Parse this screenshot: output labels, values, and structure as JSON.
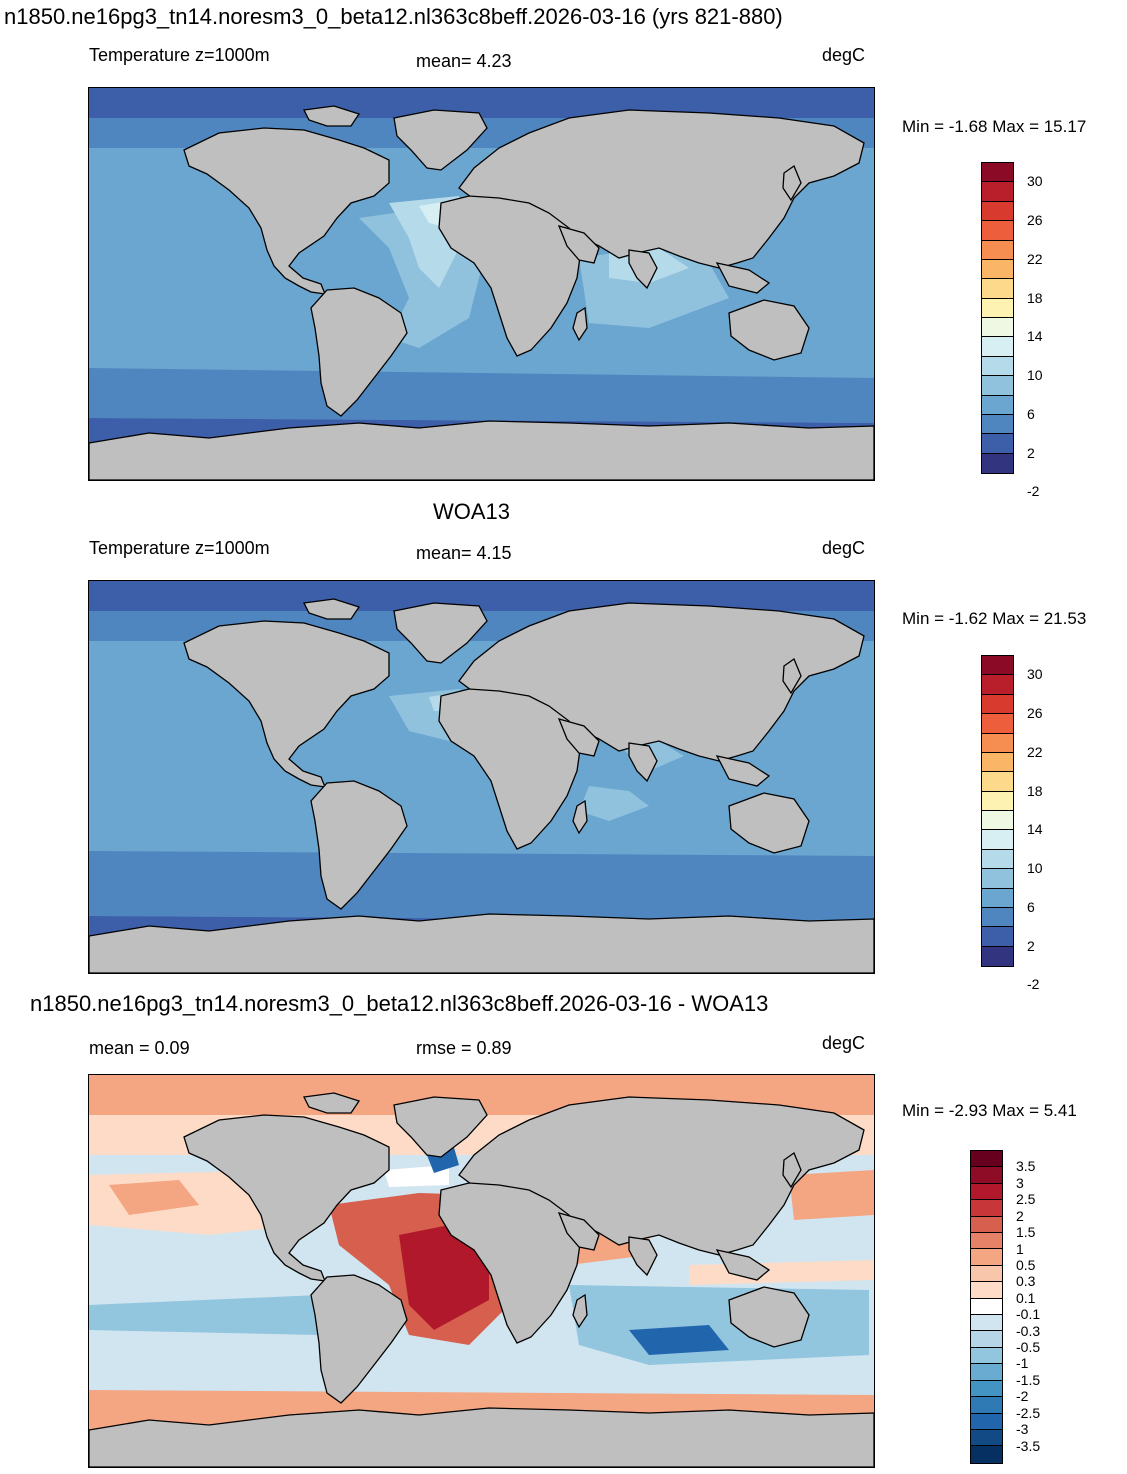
{
  "title_top": "n1850.ne16pg3_tn14.noresm3_0_beta12.nl363c8beff.2026-03-16 (yrs 821-880)",
  "panels": [
    {
      "left_label": "Temperature z=1000m",
      "mid_label": "mean=   4.23",
      "units": "degC",
      "minmax": "Min =  -1.68 Max =  15.17",
      "colorbar": {
        "colors": [
          "#8b0a26",
          "#b91f2a",
          "#d83a2e",
          "#ed5f3c",
          "#f68e52",
          "#fbb567",
          "#fdd98b",
          "#fdf2b2",
          "#eef8e3",
          "#d7eef2",
          "#b5dbeb",
          "#90c2de",
          "#6aa6cf",
          "#4f86c0",
          "#3d5ea8",
          "#333480"
        ],
        "labels": [
          "30",
          "26",
          "22",
          "18",
          "14",
          "10",
          "6",
          "2",
          "-2"
        ]
      }
    },
    {
      "title": "WOA13",
      "left_label": "Temperature z=1000m",
      "mid_label": "mean=   4.15",
      "units": "degC",
      "minmax": "Min =  -1.62 Max =  21.53",
      "colorbar": {
        "colors": [
          "#8b0a26",
          "#b91f2a",
          "#d83a2e",
          "#ed5f3c",
          "#f68e52",
          "#fbb567",
          "#fdd98b",
          "#fdf2b2",
          "#eef8e3",
          "#d7eef2",
          "#b5dbeb",
          "#90c2de",
          "#6aa6cf",
          "#4f86c0",
          "#3d5ea8",
          "#333480"
        ],
        "labels": [
          "30",
          "26",
          "22",
          "18",
          "14",
          "10",
          "6",
          "2",
          "-2"
        ]
      }
    },
    {
      "title": "n1850.ne16pg3_tn14.noresm3_0_beta12.nl363c8beff.2026-03-16 - WOA13",
      "left_label": "mean =   0.09",
      "mid_label": "rmse =   0.89",
      "units": "degC",
      "minmax": "Min =  -2.93 Max =   5.41",
      "colorbar": {
        "colors": [
          "#67001f",
          "#8e0c25",
          "#b2182b",
          "#c7373a",
          "#d6604d",
          "#e58267",
          "#f4a582",
          "#f8c6ab",
          "#fddbc7",
          "#ffffff",
          "#d1e5f0",
          "#b6d6e8",
          "#92c5de",
          "#6aabd1",
          "#4393c3",
          "#2f79b5",
          "#2166ac",
          "#124a86",
          "#053061"
        ],
        "labels": [
          "3.5",
          "3",
          "2.5",
          "2",
          "1.5",
          "1",
          "0.5",
          "0.3",
          "0.1",
          "-0.1",
          "-0.3",
          "-0.5",
          "-1",
          "-1.5",
          "-2",
          "-2.5",
          "-3",
          "-3.5"
        ]
      }
    }
  ],
  "map_colors": {
    "land": "#bfbfbf",
    "p1_ocean": [
      "#3d5ea8",
      "#4f86c0",
      "#6aa6cf",
      "#90c2de",
      "#b5dbeb",
      "#d7eef2",
      "#fdf2b2"
    ],
    "p3_ocean": [
      "#f4a582",
      "#fddbc7",
      "#d1e5f0",
      "#92c5de",
      "#d6604d",
      "#b2182b",
      "#2166ac",
      "#67001f",
      "#ffffff"
    ]
  }
}
